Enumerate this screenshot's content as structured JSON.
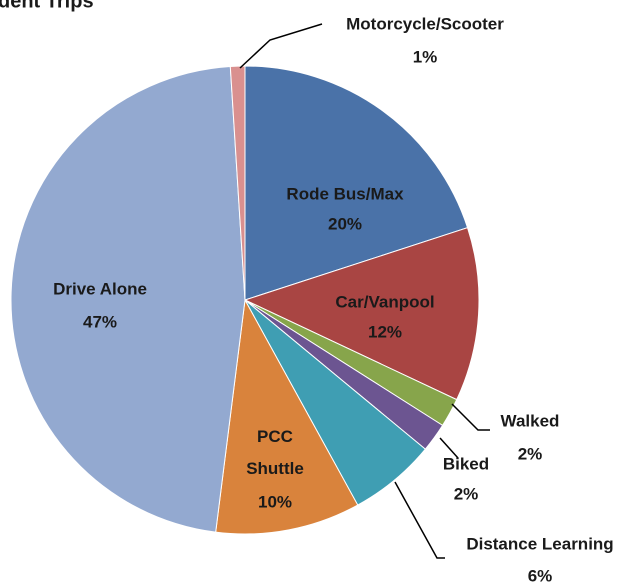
{
  "chart_data": {
    "type": "pie",
    "title": "dent Trips",
    "categories": [
      "Rode Bus/Max",
      "Car/Vanpool",
      "Walked",
      "Biked",
      "Distance Learning",
      "PCC Shuttle",
      "Drive Alone",
      "Motorcycle/Scooter"
    ],
    "values": [
      20,
      12,
      2,
      2,
      6,
      10,
      47,
      1
    ],
    "value_labels": [
      "20%",
      "12%",
      "2%",
      "2%",
      "6%",
      "10%",
      "47%",
      "1%"
    ],
    "colors": [
      "#4a72a8",
      "#a94543",
      "#87a54b",
      "#6c5591",
      "#3f9eb3",
      "#d9833c",
      "#93a9d0",
      "#d9908f"
    ]
  }
}
